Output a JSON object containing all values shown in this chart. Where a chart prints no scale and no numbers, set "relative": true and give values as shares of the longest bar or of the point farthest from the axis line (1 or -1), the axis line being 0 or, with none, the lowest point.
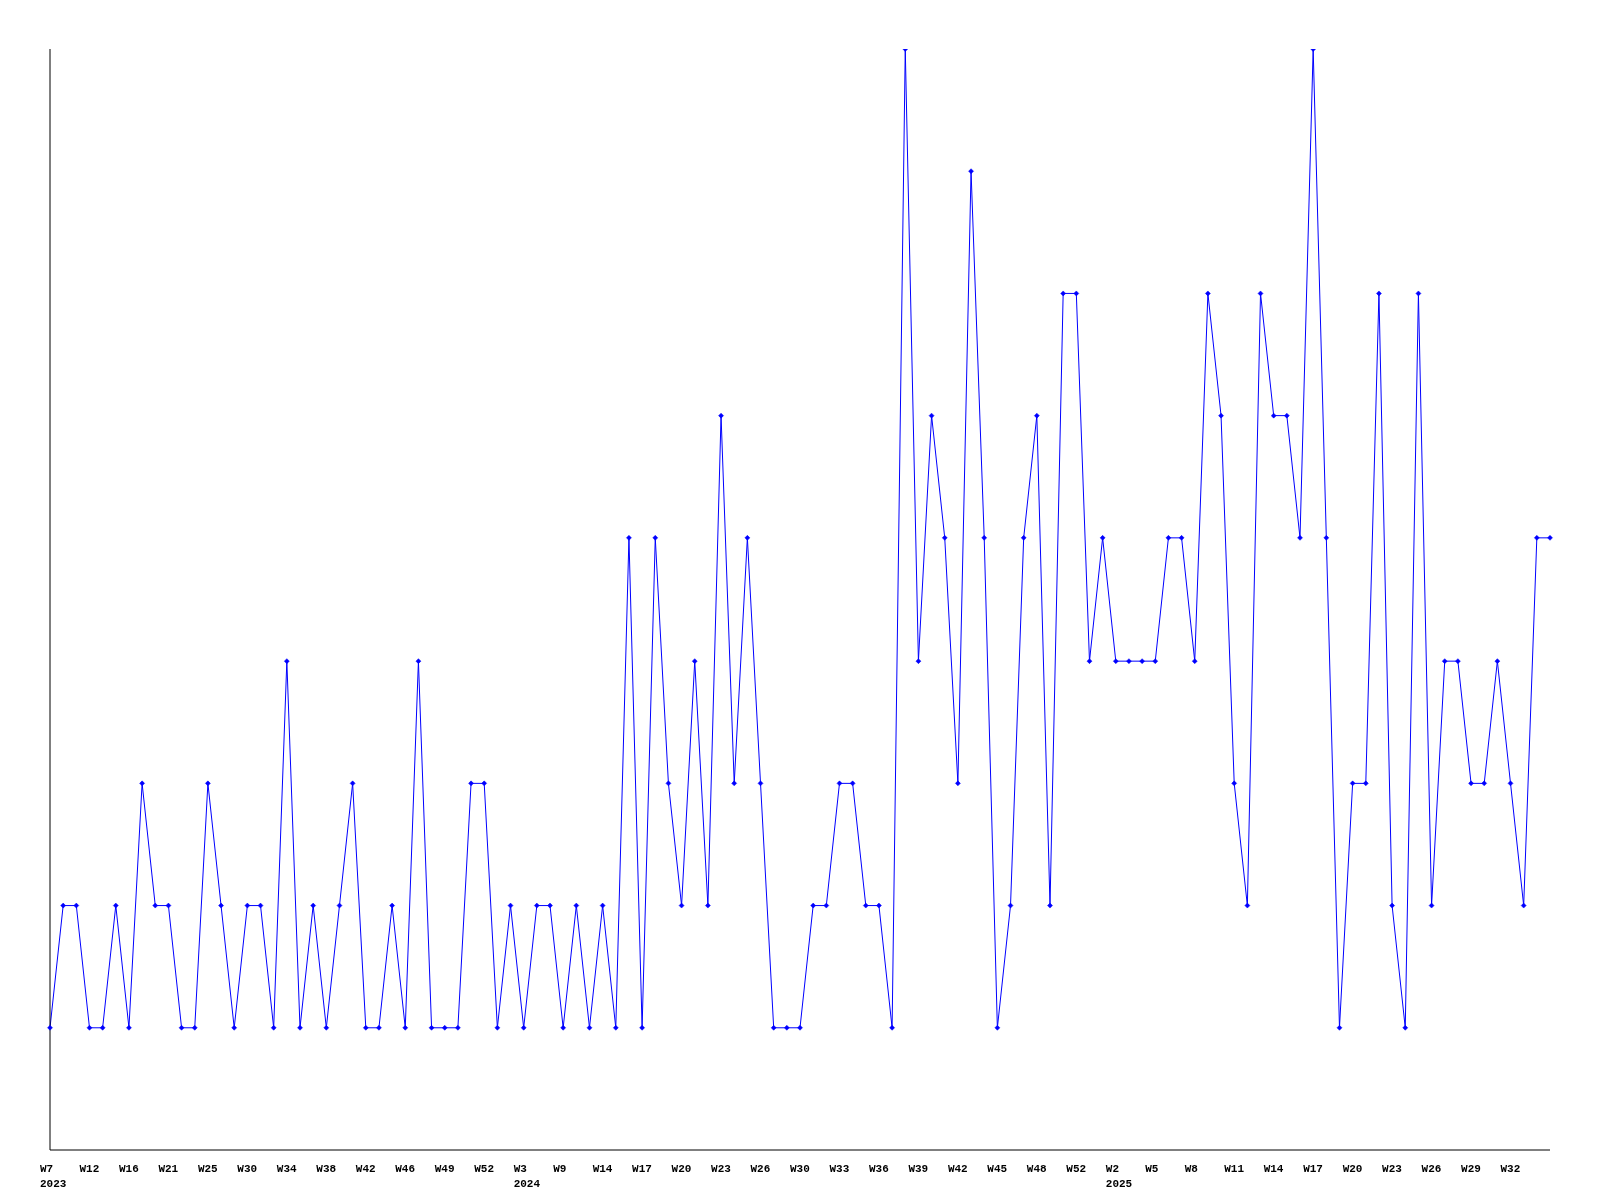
{
  "chart_data": {
    "type": "line",
    "relative": true,
    "tick_labels": "x",
    "marker": "diamond",
    "line_style": "solid",
    "categories": [
      "W7\n2023",
      null,
      null,
      "W12",
      null,
      null,
      "W16",
      null,
      null,
      "W21",
      null,
      null,
      "W25",
      null,
      null,
      "W30",
      null,
      null,
      "W34",
      null,
      null,
      "W38",
      null,
      null,
      "W42",
      null,
      null,
      "W46",
      null,
      null,
      "W49",
      null,
      null,
      "W52",
      null,
      null,
      "W3\n2024",
      null,
      null,
      "W9",
      null,
      null,
      "W14",
      null,
      null,
      "W17",
      null,
      null,
      "W20",
      null,
      null,
      "W23",
      null,
      null,
      "W26",
      null,
      null,
      "W30",
      null,
      null,
      "W33",
      null,
      null,
      "W36",
      null,
      null,
      "W39",
      null,
      null,
      "W42",
      null,
      null,
      "W45",
      null,
      null,
      "W48",
      null,
      null,
      "W52",
      null,
      null,
      "W2\n2025",
      null,
      null,
      "W5",
      null,
      null,
      "W8",
      null,
      null,
      "W11",
      null,
      null,
      "W14",
      null,
      null,
      "W17",
      null,
      null,
      "W20",
      null,
      null,
      "W23",
      null,
      null,
      "W26",
      null,
      null,
      "W29",
      null,
      null,
      "W32",
      null,
      null,
      null
    ],
    "series": [
      {
        "color": "#0000ff",
        "values": [
          0.111,
          0.222,
          0.222,
          0.111,
          0.111,
          0.222,
          0.111,
          0.333,
          0.222,
          0.222,
          0.111,
          0.111,
          0.333,
          0.222,
          0.111,
          0.222,
          0.222,
          0.111,
          0.444,
          0.111,
          0.222,
          0.111,
          0.222,
          0.333,
          0.111,
          0.111,
          0.222,
          0.111,
          0.444,
          0.111,
          0.111,
          0.111,
          0.333,
          0.333,
          0.111,
          0.222,
          0.111,
          0.222,
          0.222,
          0.111,
          0.222,
          0.111,
          0.222,
          0.111,
          0.556,
          0.111,
          0.556,
          0.333,
          0.222,
          0.444,
          0.222,
          0.667,
          0.333,
          0.556,
          0.333,
          0.111,
          0.111,
          0.111,
          0.222,
          0.222,
          0.333,
          0.333,
          0.222,
          0.222,
          0.111,
          1,
          0.444,
          0.667,
          0.556,
          0.333,
          0.889,
          0.556,
          0.111,
          0.222,
          0.556,
          0.667,
          0.222,
          0.778,
          0.778,
          0.444,
          0.556,
          0.444,
          0.444,
          0.444,
          0.444,
          0.556,
          0.556,
          0.444,
          0.778,
          0.667,
          0.333,
          0.222,
          0.778,
          0.667,
          0.667,
          0.556,
          1,
          0.556,
          0.111,
          0.333,
          0.333,
          0.778,
          0.222,
          0.111,
          0.778,
          0.222,
          0.444,
          0.444,
          0.333,
          0.333,
          0.444,
          0.333,
          0.222,
          0.556,
          0.556
        ]
      }
    ]
  }
}
